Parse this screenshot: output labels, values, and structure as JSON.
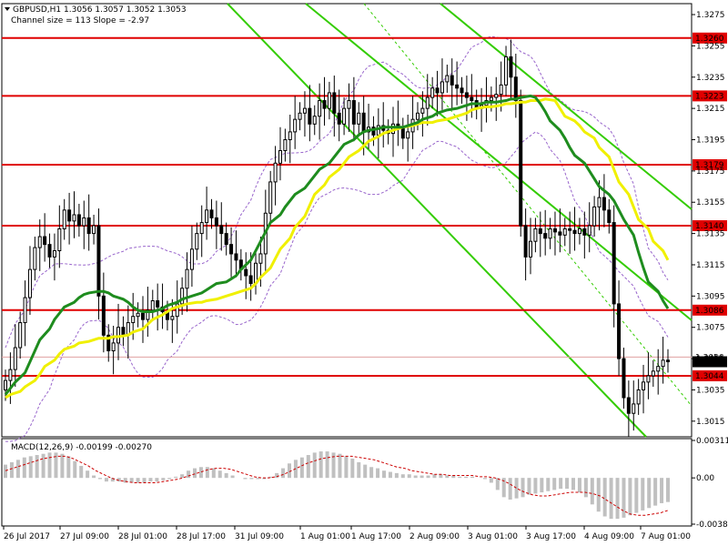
{
  "header": {
    "symbol_line": "GBPUSD,H1  1.3056 1.3057 1.3052 1.3053",
    "channel_line": "Channel size = 113 Slope = -2.97"
  },
  "macd_label": "MACD(12,26,9) -0.00199 -0.00270",
  "colors": {
    "level_line": "#e00000",
    "level_tag_bg": "#e00000",
    "current_tag_bg": "#000000",
    "bull_candle": "#ffffff",
    "bear_candle": "#000000",
    "ma_fast": "#1e8c1e",
    "ma_slow": "#f0f000",
    "channel": "#33cc00",
    "envelope": "#9966cc",
    "macd_hist": "#c0c0c0",
    "macd_signal": "#cc0000"
  },
  "chart_data": {
    "type": "candlestick",
    "ylim": [
      1.3005,
      1.3282
    ],
    "price_ticks": [
      "1.3275",
      "1.3255",
      "1.3235",
      "1.3215",
      "1.3195",
      "1.3175",
      "1.3155",
      "1.3135",
      "1.3115",
      "1.3095",
      "1.3075",
      "1.3055",
      "1.3035",
      "1.3015"
    ],
    "time_ticks": [
      "26 Jul 2017",
      "27 Jul 09:00",
      "28 Jul 01:00",
      "28 Jul 17:00",
      "31 Jul 09:00",
      "1 Aug 01:00",
      "1 Aug 17:00",
      "2 Aug 09:00",
      "3 Aug 01:00",
      "3 Aug 17:00",
      "4 Aug 09:00",
      "7 Aug 01:00"
    ],
    "levels": [
      "1.3260",
      "1.3223",
      "1.3179",
      "1.3140",
      "1.3086",
      "1.3044"
    ],
    "current_price": "1.3053",
    "current_price_hidden": "1.3056",
    "macd_ylim": [
      -0.00384,
      0.00311
    ],
    "macd_ticks": [
      "0.00311",
      "0.00",
      "-0.00384"
    ],
    "close": [
      1.3041,
      1.3048,
      1.3062,
      1.3078,
      1.3094,
      1.3112,
      1.3126,
      1.3133,
      1.3128,
      1.312,
      1.3124,
      1.3138,
      1.315,
      1.3143,
      1.3147,
      1.314,
      1.3145,
      1.3135,
      1.314,
      1.3095,
      1.307,
      1.306,
      1.3065,
      1.3075,
      1.307,
      1.3078,
      1.3082,
      1.3084,
      1.308,
      1.3086,
      1.3092,
      1.3088,
      1.3085,
      1.308,
      1.3082,
      1.309,
      1.31,
      1.3112,
      1.3125,
      1.3135,
      1.3142,
      1.315,
      1.3145,
      1.314,
      1.3135,
      1.3128,
      1.3122,
      1.3118,
      1.3112,
      1.3108,
      1.3103,
      1.3116,
      1.3122,
      1.3148,
      1.3168,
      1.318,
      1.3188,
      1.3195,
      1.32,
      1.3208,
      1.3212,
      1.3215,
      1.3205,
      1.321,
      1.322,
      1.3215,
      1.3225,
      1.3212,
      1.3205,
      1.3215,
      1.322,
      1.3205,
      1.3212,
      1.32,
      1.3203,
      1.3198,
      1.3204,
      1.3201,
      1.3199,
      1.3205,
      1.3202,
      1.3196,
      1.32,
      1.3208,
      1.3212,
      1.3215,
      1.3222,
      1.3228,
      1.3225,
      1.3232,
      1.3236,
      1.323,
      1.3228,
      1.3225,
      1.3222,
      1.322,
      1.3215,
      1.3217,
      1.322,
      1.3222,
      1.3224,
      1.323,
      1.3248,
      1.3235,
      1.322,
      1.314,
      1.312,
      1.313,
      1.3138,
      1.3135,
      1.3132,
      1.3138,
      1.3136,
      1.3134,
      1.3138,
      1.3137,
      1.3135,
      1.3138,
      1.3134,
      1.314,
      1.3152,
      1.3158,
      1.315,
      1.3142,
      1.309,
      1.3055,
      1.303,
      1.302,
      1.3026,
      1.3035,
      1.304,
      1.3044,
      1.3047,
      1.305,
      1.3054,
      1.3053
    ],
    "ma_fast": [
      1.3032,
      1.3036,
      1.304,
      1.3046,
      1.3053,
      1.306,
      1.3067,
      1.3074,
      1.308,
      1.3084,
      1.3088,
      1.3091,
      1.3094,
      1.3096,
      1.3097,
      1.3098,
      1.3098,
      1.3097,
      1.3095,
      1.3093,
      1.3091,
      1.3088,
      1.3086,
      1.3085,
      1.3085,
      1.3086,
      1.3087,
      1.3089,
      1.3091,
      1.3093,
      1.3094,
      1.3095,
      1.3097,
      1.3099,
      1.3101,
      1.3103,
      1.3104,
      1.3106,
      1.3108,
      1.3112,
      1.3118,
      1.3124,
      1.313,
      1.3136,
      1.3142,
      1.3147,
      1.3152,
      1.3156,
      1.316,
      1.3164,
      1.3168,
      1.3172,
      1.3176,
      1.318,
      1.3184,
      1.3188,
      1.3192,
      1.3195,
      1.3198,
      1.32,
      1.3201,
      1.3202,
      1.3203,
      1.3203,
      1.3203,
      1.3203,
      1.3204,
      1.3205,
      1.3206,
      1.3208,
      1.321,
      1.3212,
      1.3213,
      1.3214,
      1.3215,
      1.3216,
      1.3217,
      1.3218,
      1.3218,
      1.3219,
      1.3219,
      1.3219,
      1.322,
      1.3221,
      1.3221,
      1.3222,
      1.3223,
      1.3222,
      1.3218,
      1.3213,
      1.3207,
      1.3201,
      1.3196,
      1.319,
      1.3185,
      1.318,
      1.3175,
      1.317,
      1.3165,
      1.316,
      1.3156,
      1.315,
      1.3144,
      1.3134,
      1.3123,
      1.3113,
      1.3104,
      1.3098,
      1.3092,
      1.3087
    ],
    "ma_slow": [
      1.303,
      1.3032,
      1.3034,
      1.3037,
      1.3041,
      1.3045,
      1.305,
      1.3054,
      1.3058,
      1.3061,
      1.3063,
      1.3065,
      1.3066,
      1.3067,
      1.3068,
      1.3068,
      1.3069,
      1.3069,
      1.307,
      1.3072,
      1.3074,
      1.3077,
      1.308,
      1.3083,
      1.3085,
      1.3087,
      1.3089,
      1.309,
      1.3091,
      1.3091,
      1.3092,
      1.3093,
      1.3094,
      1.3095,
      1.3097,
      1.3098,
      1.31,
      1.3103,
      1.3107,
      1.3113,
      1.3119,
      1.3125,
      1.3132,
      1.3139,
      1.3146,
      1.3153,
      1.316,
      1.3166,
      1.3171,
      1.3176,
      1.318,
      1.3184,
      1.3188,
      1.3191,
      1.3194,
      1.3197,
      1.3199,
      1.3201,
      1.3202,
      1.3203,
      1.3204,
      1.3205,
      1.3206,
      1.3206,
      1.3207,
      1.3208,
      1.3209,
      1.321,
      1.3212,
      1.3214,
      1.3215,
      1.3216,
      1.3216,
      1.3217,
      1.3218,
      1.3218,
      1.3219,
      1.3219,
      1.322,
      1.322,
      1.3221,
      1.322,
      1.3215,
      1.321,
      1.3207,
      1.3204,
      1.32,
      1.3196,
      1.319,
      1.3184,
      1.3176,
      1.3168,
      1.316,
      1.3152,
      1.3144,
      1.3138,
      1.313,
      1.3124,
      1.3118
    ],
    "macd_hist": [
      0.0011,
      0.0013,
      0.0015,
      0.0017,
      0.0018,
      0.0019,
      0.002,
      0.0021,
      0.0021,
      0.002,
      0.0018,
      0.0014,
      0.001,
      0.0006,
      0.0002,
      -0.0001,
      -0.0003,
      -0.0003,
      -0.0003,
      -0.0004,
      -0.0004,
      -0.0004,
      -0.0004,
      -0.0003,
      -0.0003,
      -0.0002,
      -0.0001,
      0.0001,
      0.0003,
      0.0006,
      0.0008,
      0.0009,
      0.0009,
      0.0008,
      0.0006,
      0.0004,
      0.0002,
      0.0,
      -0.0001,
      -0.0001,
      -0.0001,
      -0.0001,
      0.0001,
      0.0004,
      0.0008,
      0.0012,
      0.0015,
      0.0017,
      0.0019,
      0.0021,
      0.0022,
      0.0022,
      0.0021,
      0.002,
      0.0018,
      0.0016,
      0.0013,
      0.0011,
      0.0009,
      0.0008,
      0.0006,
      0.0005,
      0.0004,
      0.0003,
      0.0003,
      0.0002,
      0.0002,
      0.0002,
      0.0003,
      0.0003,
      0.0002,
      0.0002,
      0.0001,
      0.0001,
      0.0001,
      0.0,
      -0.0001,
      -0.0004,
      -0.001,
      -0.0016,
      -0.0018,
      -0.0017,
      -0.0016,
      -0.0014,
      -0.0013,
      -0.0012,
      -0.0011,
      -0.001,
      -0.0009,
      -0.0009,
      -0.001,
      -0.0012,
      -0.0016,
      -0.0022,
      -0.0028,
      -0.0032,
      -0.0034,
      -0.0034,
      -0.0033,
      -0.0031,
      -0.0029,
      -0.0027,
      -0.0025,
      -0.0023,
      -0.0021,
      -0.002
    ],
    "macd_signal": [
      0.0006,
      0.0008,
      0.001,
      0.0012,
      0.0014,
      0.0016,
      0.0017,
      0.0018,
      0.0018,
      0.0016,
      0.0013,
      0.001,
      0.0006,
      0.0003,
      0.0,
      -0.0002,
      -0.0003,
      -0.0004,
      -0.0004,
      -0.0004,
      -0.0004,
      -0.0003,
      -0.0002,
      -0.0001,
      0.0001,
      0.0003,
      0.0005,
      0.0007,
      0.0008,
      0.0008,
      0.0007,
      0.0005,
      0.0003,
      0.0001,
      0.0,
      0.0,
      0.0001,
      0.0003,
      0.0006,
      0.0009,
      0.0012,
      0.0014,
      0.0016,
      0.0017,
      0.0018,
      0.0018,
      0.0018,
      0.0017,
      0.0016,
      0.0015,
      0.0013,
      0.0011,
      0.0009,
      0.0008,
      0.0006,
      0.0005,
      0.0004,
      0.0003,
      0.0003,
      0.0002,
      0.0002,
      0.0002,
      0.0002,
      0.0001,
      0.0001,
      0.0,
      -0.0002,
      -0.0005,
      -0.0009,
      -0.0012,
      -0.0014,
      -0.0015,
      -0.0015,
      -0.0014,
      -0.0013,
      -0.0012,
      -0.0012,
      -0.0012,
      -0.0013,
      -0.0015,
      -0.0019,
      -0.0023,
      -0.0027,
      -0.003,
      -0.0031,
      -0.0031,
      -0.003,
      -0.0029,
      -0.0027
    ]
  }
}
